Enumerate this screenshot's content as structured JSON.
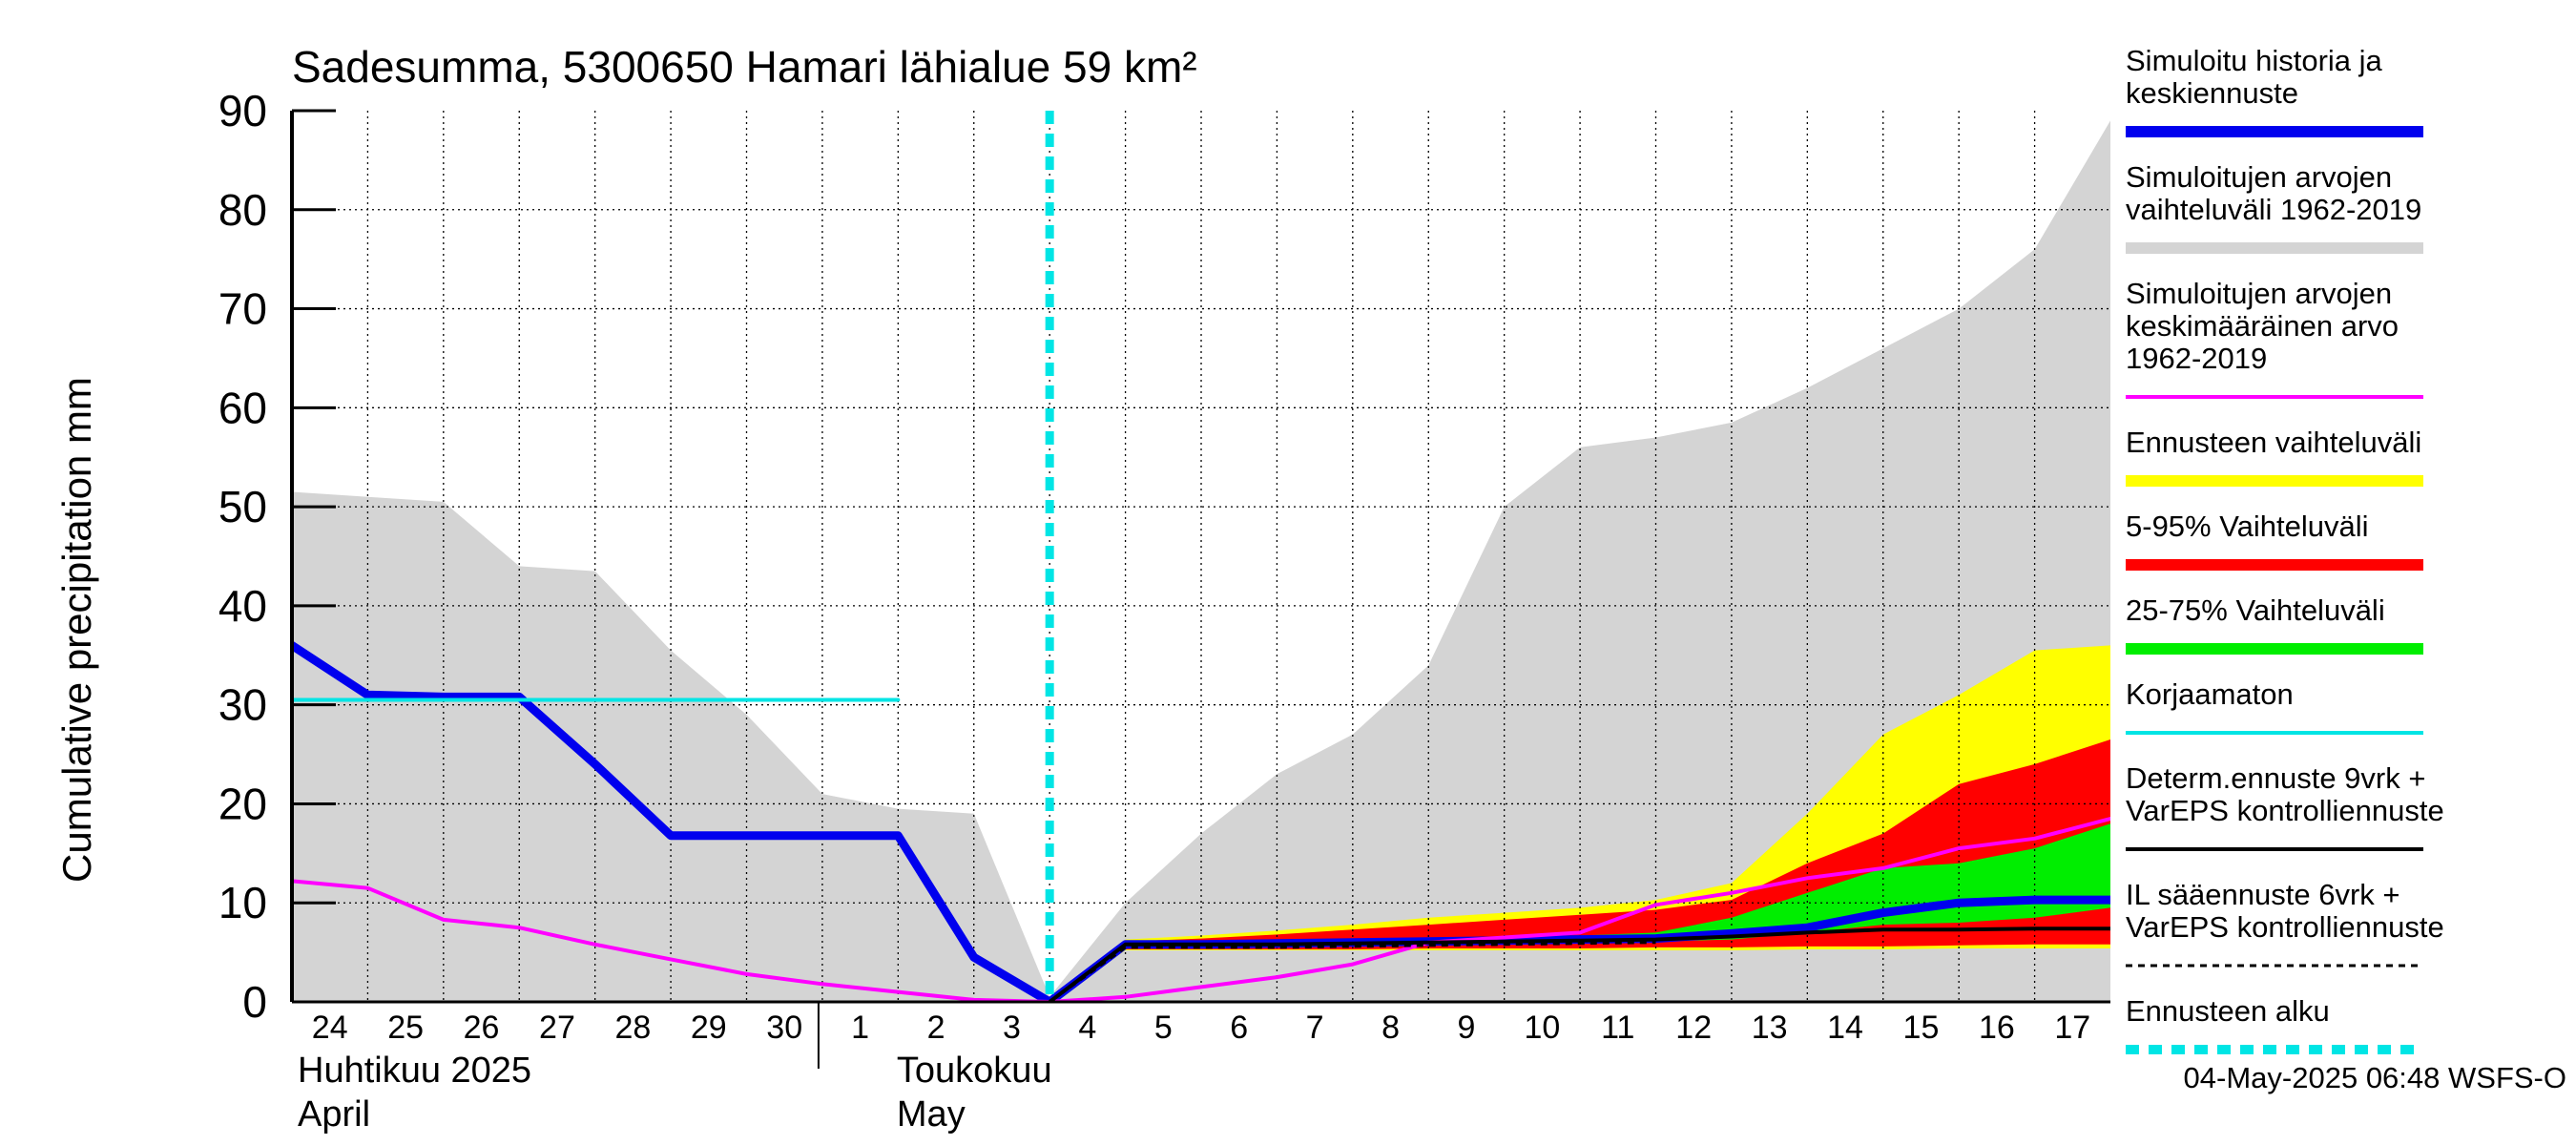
{
  "chart_data": {
    "type": "area",
    "title": "Sadesumma, 5300650 Hamari lähialue 59 km²",
    "ylabel": "Cumulative precipitation   mm",
    "ylim": [
      0,
      90
    ],
    "yticks": [
      0,
      10,
      20,
      30,
      40,
      50,
      60,
      70,
      80,
      90
    ],
    "grid": true,
    "x_ticks": [
      "24",
      "25",
      "26",
      "27",
      "28",
      "29",
      "30",
      "1",
      "2",
      "3",
      "4",
      "5",
      "6",
      "7",
      "8",
      "9",
      "10",
      "11",
      "12",
      "13",
      "14",
      "15",
      "16",
      "17"
    ],
    "x_dates": [
      "2025-04-24",
      "2025-04-25",
      "2025-04-26",
      "2025-04-27",
      "2025-04-28",
      "2025-04-29",
      "2025-04-30",
      "2025-05-01",
      "2025-05-02",
      "2025-05-03",
      "2025-05-04",
      "2025-05-05",
      "2025-05-06",
      "2025-05-07",
      "2025-05-08",
      "2025-05-09",
      "2025-05-10",
      "2025-05-11",
      "2025-05-12",
      "2025-05-13",
      "2025-05-14",
      "2025-05-15",
      "2025-05-16",
      "2025-05-17",
      "2025-05-18"
    ],
    "month_labels": [
      {
        "line1": "Huhtikuu  2025",
        "line2": "April"
      },
      {
        "line1": "Toukokuu",
        "line2": "May"
      }
    ],
    "forecast_start": "2025-05-04",
    "series": [
      {
        "name": "Simuloitujen arvojen vaihteluväli 1962-2019",
        "kind": "band",
        "color": "#d4d4d4",
        "upper": [
          51.5,
          51,
          50.5,
          44,
          43.5,
          35.5,
          29,
          21,
          19.5,
          19,
          0.5,
          10,
          17,
          23,
          27,
          34,
          50,
          56,
          57,
          58.5,
          62,
          66,
          70,
          76,
          89
        ],
        "lower": [
          0,
          0,
          0,
          0,
          0,
          0,
          0,
          0,
          0,
          0,
          0,
          0,
          0,
          0,
          0,
          0,
          0,
          0,
          0,
          0,
          0,
          0,
          0,
          0,
          0
        ]
      },
      {
        "name": "Ennusteen vaihteluväli",
        "kind": "band",
        "color": "#ffff00",
        "upper": [
          null,
          null,
          null,
          null,
          null,
          null,
          null,
          null,
          null,
          null,
          0,
          6.3,
          6.7,
          7.2,
          7.8,
          8.5,
          9.0,
          9.5,
          10.3,
          12,
          19,
          27,
          31,
          35.5,
          36
        ],
        "lower": [
          null,
          null,
          null,
          null,
          null,
          null,
          null,
          null,
          null,
          null,
          0,
          5.2,
          5.2,
          5.2,
          5.2,
          5.2,
          5.2,
          5.2,
          5.2,
          5.2,
          5.3,
          5.3,
          5.4,
          5.4,
          5.4
        ]
      },
      {
        "name": "5-95% Vaihteluväli",
        "kind": "band",
        "color": "#ff0000",
        "upper": [
          null,
          null,
          null,
          null,
          null,
          null,
          null,
          null,
          null,
          null,
          0,
          6.1,
          6.4,
          6.8,
          7.3,
          7.8,
          8.3,
          8.8,
          9.3,
          10.3,
          14,
          17,
          22,
          24,
          26.5
        ],
        "lower": [
          null,
          null,
          null,
          null,
          null,
          null,
          null,
          null,
          null,
          null,
          0,
          5.3,
          5.3,
          5.3,
          5.3,
          5.4,
          5.4,
          5.4,
          5.5,
          5.5,
          5.6,
          5.6,
          5.7,
          5.8,
          5.8
        ]
      },
      {
        "name": "25-75% Vaihteluväli",
        "kind": "band",
        "color": "#00ee00",
        "upper": [
          null,
          null,
          null,
          null,
          null,
          null,
          null,
          null,
          null,
          null,
          0,
          5.8,
          5.9,
          6.0,
          6.1,
          6.3,
          6.5,
          6.7,
          7.0,
          8.5,
          11,
          13.5,
          14,
          15.5,
          18
        ],
        "lower": [
          null,
          null,
          null,
          null,
          null,
          null,
          null,
          null,
          null,
          null,
          0,
          5.5,
          5.5,
          5.6,
          5.7,
          5.8,
          5.9,
          6.0,
          6.1,
          6.3,
          7.0,
          7.8,
          8.0,
          8.5,
          9.5
        ]
      },
      {
        "name": "Simuloitu historia ja keskiennuste",
        "kind": "line",
        "color": "#0000ee",
        "width": 9,
        "values": [
          36,
          31,
          30.8,
          30.8,
          24,
          16.8,
          16.8,
          16.8,
          16.8,
          4.5,
          0,
          5.8,
          5.8,
          5.9,
          6.0,
          6.1,
          6.2,
          6.3,
          6.4,
          6.9,
          7.5,
          9,
          10,
          10.3,
          10.3
        ]
      },
      {
        "name": "Simuloitujen arvojen keskimääräinen arvo 1962-2019",
        "kind": "line",
        "color": "#ff00ff",
        "width": 4,
        "values": [
          12.2,
          11.5,
          8.3,
          7.5,
          5.8,
          4.3,
          2.8,
          1.8,
          1.0,
          0.2,
          0,
          0.5,
          1.5,
          2.5,
          3.8,
          6.0,
          6.5,
          7.0,
          9.8,
          11,
          12.5,
          13.5,
          15.5,
          16.5,
          18.5
        ]
      },
      {
        "name": "Korjaamaton",
        "kind": "line",
        "color": "#00e5e5",
        "width": 4,
        "values": [
          30.5,
          30.5,
          30.5,
          30.5,
          30.5,
          30.5,
          30.5,
          30.5,
          30.5,
          null,
          null,
          null,
          null,
          null,
          null,
          null,
          null,
          null,
          null,
          null,
          null,
          null,
          null,
          null,
          null
        ]
      },
      {
        "name": "Determ.ennuste 9vrk + VarEPS kontrolliennuste",
        "kind": "line",
        "color": "#000000",
        "width": 4,
        "values": [
          null,
          null,
          null,
          null,
          null,
          null,
          null,
          null,
          null,
          null,
          0,
          5.8,
          5.8,
          5.8,
          5.9,
          6.0,
          6.1,
          6.2,
          6.3,
          6.6,
          7.0,
          7.3,
          7.3,
          7.4,
          7.4
        ]
      },
      {
        "name": "IL sääennuste 6vrk + VarEPS kontrolliennuste",
        "kind": "dashed",
        "color": "#000000",
        "width": 3,
        "values": [
          null,
          null,
          null,
          null,
          null,
          null,
          null,
          null,
          null,
          null,
          0,
          5.5,
          5.5,
          5.5,
          5.6,
          5.7,
          5.8,
          5.9,
          6.0,
          null,
          null,
          null,
          null,
          null,
          null
        ]
      }
    ]
  },
  "legend": [
    {
      "lines": [
        "Simuloitu historia ja",
        "keskiennuste"
      ],
      "color": "#0000ee",
      "style": "thick"
    },
    {
      "lines": [
        "Simuloitujen arvojen",
        "vaihteluväli 1962-2019"
      ],
      "color": "#d4d4d4",
      "style": "thick"
    },
    {
      "lines": [
        "Simuloitujen arvojen",
        "keskimääräinen arvo",
        "   1962-2019"
      ],
      "color": "#ff00ff",
      "style": "thin"
    },
    {
      "lines": [
        "Ennusteen vaihteluväli"
      ],
      "color": "#ffff00",
      "style": "thick"
    },
    {
      "lines": [
        "5-95% Vaihteluväli"
      ],
      "color": "#ff0000",
      "style": "thick"
    },
    {
      "lines": [
        "25-75% Vaihteluväli"
      ],
      "color": "#00ee00",
      "style": "thick"
    },
    {
      "lines": [
        "Korjaamaton"
      ],
      "color": "#00e5e5",
      "style": "thin"
    },
    {
      "lines": [
        "Determ.ennuste 9vrk +",
        "VarEPS kontrolliennuste"
      ],
      "color": "#000000",
      "style": "thin"
    },
    {
      "lines": [
        "IL sääennuste 6vrk  +",
        "  VarEPS kontrolliennuste"
      ],
      "color": "#000000",
      "style": "dashed"
    },
    {
      "lines": [
        "Ennusteen alku"
      ],
      "color": "#00e5e5",
      "style": "dotted-thick"
    }
  ],
  "footer": "04-May-2025 06:48 WSFS-O"
}
